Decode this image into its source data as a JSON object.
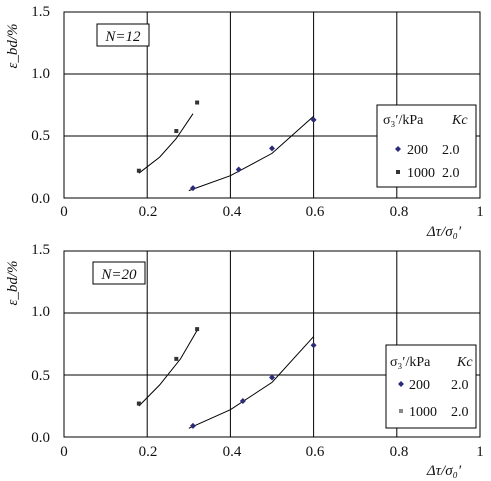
{
  "colors": {
    "background": "#ffffff",
    "grid": "#000000",
    "series_200": "#2b2b7a",
    "series_1000": "#333333",
    "curve": "#000000"
  },
  "chart_data": [
    {
      "type": "scatter",
      "panel_label": "N=12",
      "xlabel": "Δτ/σ₀′",
      "ylabel": "ε_bd/%",
      "xlim": [
        0,
        1
      ],
      "ylim": [
        0,
        1.5
      ],
      "xticks": [
        "0",
        "0.2",
        "0.4",
        "0.6",
        "0.8",
        "1"
      ],
      "yticks": [
        "0.0",
        "0.5",
        "1.0",
        "1.5"
      ],
      "grid": true,
      "legend": {
        "placement": "right",
        "header_left": "σ₃′/kPa",
        "header_right": "Kc",
        "entries": [
          {
            "label": "200",
            "kc": "2.0"
          },
          {
            "label": "1000",
            "kc": "2.0"
          }
        ]
      },
      "series": [
        {
          "name": "200",
          "marker": "diamond",
          "points": [
            [
              0.31,
              0.08
            ],
            [
              0.42,
              0.23
            ],
            [
              0.5,
              0.4
            ],
            [
              0.6,
              0.63
            ]
          ],
          "fit": [
            [
              0.3,
              0.06
            ],
            [
              0.4,
              0.18
            ],
            [
              0.5,
              0.36
            ],
            [
              0.6,
              0.66
            ]
          ]
        },
        {
          "name": "1000",
          "marker": "square",
          "points": [
            [
              0.18,
              0.22
            ],
            [
              0.27,
              0.54
            ],
            [
              0.32,
              0.77
            ]
          ],
          "fit": [
            [
              0.18,
              0.2
            ],
            [
              0.23,
              0.33
            ],
            [
              0.27,
              0.48
            ],
            [
              0.31,
              0.68
            ]
          ]
        }
      ]
    },
    {
      "type": "scatter",
      "panel_label": "N=20",
      "xlabel": "Δτ/σ₀′",
      "ylabel": "ε_bd/%",
      "xlim": [
        0,
        1
      ],
      "ylim": [
        0,
        1.5
      ],
      "xticks": [
        "0",
        "0.2",
        "0.4",
        "0.6",
        "0.8",
        "1"
      ],
      "yticks": [
        "0.0",
        "0.5",
        "1.0",
        "1.5"
      ],
      "grid": true,
      "legend": {
        "placement": "right",
        "header_left": "σ₃′/kPa",
        "header_right": "Kc",
        "entries": [
          {
            "label": "200",
            "kc": "2.0"
          },
          {
            "label": "1000",
            "kc": "2.0"
          }
        ]
      },
      "series": [
        {
          "name": "200",
          "marker": "diamond",
          "points": [
            [
              0.31,
              0.09
            ],
            [
              0.43,
              0.29
            ],
            [
              0.5,
              0.48
            ],
            [
              0.6,
              0.74
            ]
          ],
          "fit": [
            [
              0.3,
              0.07
            ],
            [
              0.4,
              0.22
            ],
            [
              0.5,
              0.44
            ],
            [
              0.6,
              0.81
            ]
          ]
        },
        {
          "name": "1000",
          "marker": "square",
          "points": [
            [
              0.18,
              0.27
            ],
            [
              0.27,
              0.63
            ],
            [
              0.32,
              0.87
            ]
          ],
          "fit": [
            [
              0.18,
              0.25
            ],
            [
              0.23,
              0.42
            ],
            [
              0.28,
              0.63
            ],
            [
              0.32,
              0.86
            ]
          ]
        }
      ]
    }
  ]
}
